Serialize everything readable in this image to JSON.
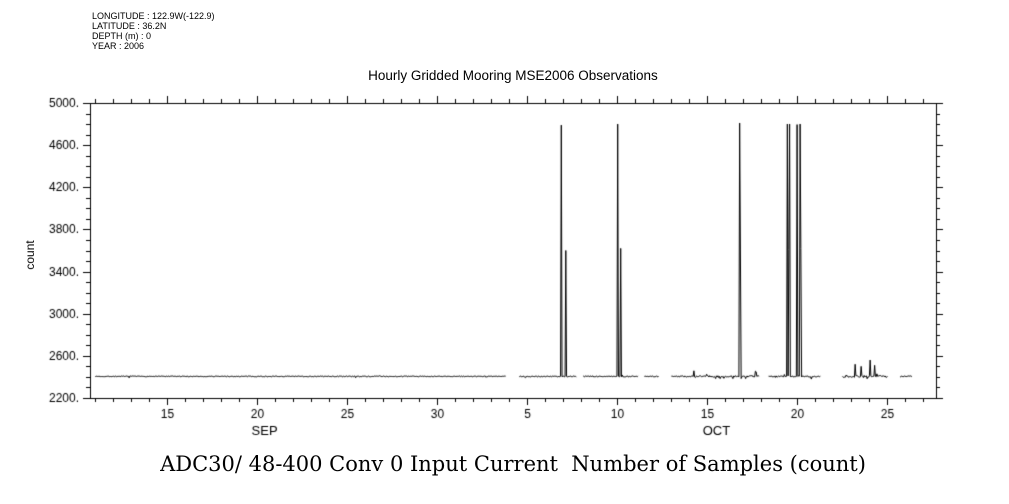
{
  "header": {
    "meta_lines": [
      "LONGITUDE : 122.9W(-122.9)",
      "LATITUDE : 36.2N",
      "DEPTH (m) : 0",
      "YEAR : 2006"
    ]
  },
  "chart_data": {
    "type": "line",
    "title": "Hourly Gridded Mooring MSE2006 Observations",
    "caption": "ADC30/ 48-400 Conv 0 Input Current  Number of Samples (count)",
    "ylabel": "count",
    "background": "#ffffff",
    "line_color": "#000000",
    "y_min": 2200,
    "y_max": 5000,
    "y_ticks": [
      {
        "value": 2200,
        "label": "2200."
      },
      {
        "value": 2600,
        "label": "2600."
      },
      {
        "value": 3000,
        "label": "3000."
      },
      {
        "value": 3400,
        "label": "3400."
      },
      {
        "value": 3800,
        "label": "3800."
      },
      {
        "value": 4200,
        "label": "4200."
      },
      {
        "value": 4600,
        "label": "4600."
      },
      {
        "value": 5000,
        "label": "5000."
      }
    ],
    "y_minor_step": 100,
    "x_min": 10.7,
    "x_max": 57.7,
    "x_unit": "day (Sep 1 = 1, Oct 1 = 31), year 2006",
    "x_major_ticks": [
      {
        "day": 15,
        "label": "15"
      },
      {
        "day": 20,
        "label": "20"
      },
      {
        "day": 25,
        "label": "25"
      },
      {
        "day": 30,
        "label": "30"
      },
      {
        "day": 35,
        "label": "5"
      },
      {
        "day": 40,
        "label": "10"
      },
      {
        "day": 45,
        "label": "15"
      },
      {
        "day": 50,
        "label": "20"
      },
      {
        "day": 55,
        "label": "25"
      }
    ],
    "x_minor_step": 1,
    "x_month_labels": [
      {
        "day": 20.4,
        "label": "SEP"
      },
      {
        "day": 45.5,
        "label": "OCT"
      }
    ],
    "baseline": 2405,
    "noise_seed": 7,
    "segments": [
      {
        "start": 11.0,
        "end": 33.8,
        "noise": 4,
        "spiky": false
      },
      {
        "start": 34.55,
        "end": 37.75,
        "noise": 5,
        "spiky": false
      },
      {
        "start": 38.1,
        "end": 41.15,
        "noise": 5,
        "spiky": false
      },
      {
        "start": 41.5,
        "end": 42.3,
        "noise": 5,
        "spiky": false
      },
      {
        "start": 43.0,
        "end": 47.9,
        "noise": 7,
        "spiky": true
      },
      {
        "start": 48.4,
        "end": 51.3,
        "noise": 6,
        "spiky": true
      },
      {
        "start": 52.5,
        "end": 55.0,
        "noise": 9,
        "spiky": true
      },
      {
        "start": 55.7,
        "end": 56.4,
        "noise": 5,
        "spiky": false
      }
    ],
    "spikes": [
      {
        "day": 36.9,
        "peak": 4790
      },
      {
        "day": 37.15,
        "peak": 3600
      },
      {
        "day": 40.0,
        "peak": 4800
      },
      {
        "day": 40.2,
        "peak": 3620
      },
      {
        "day": 46.78,
        "peak": 4810
      },
      {
        "day": 46.84,
        "peak": 3605
      },
      {
        "day": 49.46,
        "peak": 4800
      },
      {
        "day": 49.54,
        "peak": 3610
      },
      {
        "day": 49.58,
        "peak": 4800
      },
      {
        "day": 49.97,
        "peak": 4795
      },
      {
        "day": 50.14,
        "peak": 4800
      },
      {
        "day": 50.18,
        "peak": 3620
      },
      {
        "day": 53.2,
        "peak": 2520
      },
      {
        "day": 53.55,
        "peak": 2500
      },
      {
        "day": 54.05,
        "peak": 2560
      },
      {
        "day": 54.3,
        "peak": 2510
      }
    ]
  }
}
